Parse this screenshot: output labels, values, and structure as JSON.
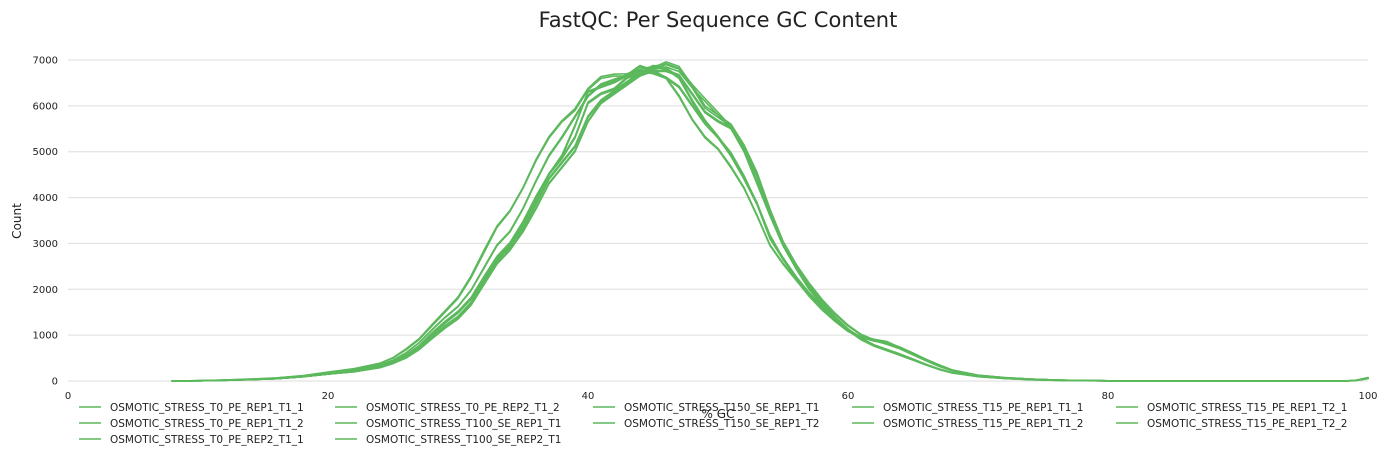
{
  "chart_data": {
    "type": "line",
    "title": "FastQC: Per Sequence GC Content",
    "xlabel": "% GC",
    "ylabel": "Count",
    "xlim": [
      0,
      100
    ],
    "ylim": [
      0,
      7000
    ],
    "xticks": [
      "0",
      "20",
      "40",
      "60",
      "80",
      "100"
    ],
    "yticks": [
      "0",
      "1000",
      "2000",
      "3000",
      "4000",
      "5000",
      "6000",
      "7000"
    ],
    "grid": "horizontal",
    "legend_position": "bottom",
    "line_color": "#5cb85c",
    "x": [
      8,
      10,
      12,
      14,
      16,
      18,
      20,
      22,
      24,
      25,
      26,
      27,
      28,
      29,
      30,
      31,
      32,
      33,
      34,
      35,
      36,
      37,
      38,
      39,
      40,
      41,
      42,
      43,
      44,
      45,
      46,
      47,
      48,
      49,
      50,
      51,
      52,
      53,
      54,
      55,
      56,
      57,
      58,
      59,
      60,
      61,
      62,
      63,
      64,
      65,
      66,
      67,
      68,
      70,
      72,
      74,
      76,
      78,
      80,
      82,
      84,
      86,
      88,
      90,
      92,
      94,
      96,
      98,
      99,
      100
    ],
    "series": [
      {
        "name": "OSMOTIC_STRESS_T0_PE_REP1_T1_1",
        "values": [
          0,
          5,
          15,
          30,
          50,
          90,
          160,
          220,
          330,
          420,
          560,
          760,
          1030,
          1290,
          1510,
          1800,
          2250,
          2700,
          3000,
          3450,
          4000,
          4500,
          4900,
          5550,
          6300,
          6400,
          6500,
          6650,
          6850,
          6750,
          6600,
          6200,
          5700,
          5300,
          5050,
          4650,
          4200,
          3600,
          2950,
          2550,
          2200,
          1850,
          1550,
          1300,
          1080,
          950,
          900,
          850,
          720,
          580,
          450,
          330,
          230,
          120,
          70,
          40,
          20,
          10,
          5,
          2,
          0,
          0,
          0,
          0,
          0,
          0,
          0,
          0,
          10,
          70
        ]
      },
      {
        "name": "OSMOTIC_STRESS_T0_PE_REP1_T1_2",
        "values": [
          0,
          5,
          15,
          30,
          50,
          90,
          160,
          220,
          330,
          430,
          570,
          770,
          1050,
          1300,
          1520,
          1820,
          2280,
          2720,
          3020,
          3480,
          4030,
          4520,
          4930,
          5580,
          6320,
          6420,
          6520,
          6680,
          6880,
          6780,
          6620,
          6230,
          5720,
          5330,
          5070,
          4680,
          4220,
          3620,
          2970,
          2570,
          2220,
          1870,
          1570,
          1320,
          1100,
          960,
          910,
          860,
          730,
          590,
          460,
          340,
          235,
          125,
          72,
          42,
          22,
          11,
          5,
          2,
          0,
          0,
          0,
          0,
          0,
          0,
          0,
          0,
          12,
          75
        ]
      },
      {
        "name": "OSMOTIC_STRESS_T0_PE_REP2_T1_1",
        "values": [
          0,
          8,
          20,
          40,
          65,
          110,
          190,
          260,
          380,
          500,
          680,
          900,
          1200,
          1500,
          1800,
          2250,
          2800,
          3350,
          3700,
          4200,
          4800,
          5300,
          5650,
          5900,
          6350,
          6600,
          6650,
          6650,
          6750,
          6800,
          6850,
          6750,
          6400,
          6100,
          5800,
          5500,
          5000,
          4300,
          3600,
          2950,
          2500,
          2100,
          1750,
          1450,
          1200,
          1000,
          880,
          800,
          700,
          570,
          440,
          320,
          220,
          115,
          65,
          35,
          18,
          9,
          4,
          1,
          0,
          0,
          0,
          0,
          0,
          0,
          0,
          0,
          8,
          60
        ]
      },
      {
        "name": "OSMOTIC_STRESS_T0_PE_REP2_T1_2",
        "values": [
          0,
          8,
          20,
          42,
          68,
          115,
          195,
          270,
          390,
          510,
          700,
          920,
          1230,
          1530,
          1830,
          2290,
          2850,
          3380,
          3720,
          4220,
          4830,
          5330,
          5680,
          5940,
          6380,
          6640,
          6690,
          6700,
          6800,
          6860,
          6920,
          6820,
          6470,
          6160,
          5860,
          5550,
          5050,
          4350,
          3650,
          3000,
          2550,
          2140,
          1780,
          1480,
          1220,
          1020,
          900,
          820,
          710,
          580,
          450,
          330,
          225,
          118,
          67,
          36,
          19,
          9,
          4,
          1,
          0,
          0,
          0,
          0,
          0,
          0,
          0,
          0,
          9,
          62
        ]
      },
      {
        "name": "OSMOTIC_STRESS_T100_SE_REP1_T1",
        "values": [
          0,
          5,
          15,
          30,
          50,
          90,
          150,
          200,
          300,
          390,
          520,
          700,
          950,
          1200,
          1400,
          1700,
          2150,
          2600,
          2950,
          3300,
          3850,
          4400,
          4750,
          5100,
          5750,
          6100,
          6300,
          6500,
          6700,
          6800,
          6900,
          6800,
          6400,
          5950,
          5750,
          5550,
          5100,
          4500,
          3700,
          3000,
          2500,
          2050,
          1700,
          1380,
          1120,
          920,
          780,
          680,
          580,
          470,
          360,
          260,
          180,
          100,
          60,
          30,
          15,
          8,
          3,
          1,
          0,
          0,
          0,
          0,
          0,
          0,
          0,
          0,
          8,
          55
        ]
      },
      {
        "name": "OSMOTIC_STRESS_T100_SE_REP2_T1",
        "values": [
          0,
          5,
          15,
          30,
          50,
          90,
          150,
          205,
          305,
          395,
          525,
          710,
          960,
          1210,
          1410,
          1720,
          2170,
          2630,
          2980,
          3330,
          3880,
          4430,
          4780,
          5130,
          5780,
          6130,
          6330,
          6530,
          6730,
          6830,
          6960,
          6860,
          6450,
          6000,
          5800,
          5600,
          5150,
          4550,
          3750,
          3050,
          2550,
          2090,
          1730,
          1400,
          1140,
          935,
          790,
          690,
          590,
          480,
          365,
          265,
          182,
          102,
          61,
          31,
          16,
          8,
          3,
          1,
          0,
          0,
          0,
          0,
          0,
          0,
          0,
          0,
          8,
          58
        ]
      },
      {
        "name": "OSMOTIC_STRESS_T150_SE_REP1_T1",
        "values": [
          0,
          5,
          15,
          30,
          50,
          90,
          150,
          210,
          320,
          410,
          550,
          750,
          1000,
          1260,
          1480,
          1780,
          2200,
          2650,
          2900,
          3400,
          3950,
          4500,
          4850,
          5300,
          6050,
          6250,
          6350,
          6600,
          6700,
          6850,
          6800,
          6600,
          6100,
          5650,
          5300,
          4900,
          4400,
          3850,
          3100,
          2650,
          2250,
          1900,
          1600,
          1350,
          1100,
          950,
          870,
          820,
          730,
          600,
          470,
          350,
          240,
          125,
          75,
          42,
          22,
          11,
          5,
          2,
          0,
          0,
          0,
          0,
          0,
          0,
          0,
          0,
          10,
          65
        ]
      },
      {
        "name": "OSMOTIC_STRESS_T150_SE_REP1_T2",
        "values": [
          0,
          5,
          15,
          30,
          50,
          90,
          150,
          210,
          320,
          415,
          555,
          755,
          1010,
          1270,
          1490,
          1790,
          2220,
          2670,
          2920,
          3420,
          3970,
          4530,
          4880,
          5330,
          6080,
          6280,
          6380,
          6630,
          6730,
          6880,
          6830,
          6640,
          6140,
          5690,
          5340,
          4940,
          4440,
          3890,
          3140,
          2690,
          2280,
          1930,
          1620,
          1370,
          1120,
          960,
          880,
          830,
          740,
          610,
          475,
          355,
          243,
          127,
          76,
          43,
          22,
          11,
          5,
          2,
          0,
          0,
          0,
          0,
          0,
          0,
          0,
          0,
          10,
          68
        ]
      },
      {
        "name": "OSMOTIC_STRESS_T15_PE_REP1_T1_1",
        "values": [
          0,
          5,
          15,
          30,
          50,
          90,
          150,
          200,
          290,
          380,
          500,
          680,
          920,
          1150,
          1350,
          1650,
          2100,
          2550,
          2850,
          3250,
          3750,
          4300,
          4650,
          5000,
          5650,
          6050,
          6250,
          6450,
          6650,
          6750,
          6750,
          6650,
          6250,
          5850,
          5650,
          5500,
          5050,
          4450,
          3650,
          2950,
          2450,
          2000,
          1650,
          1350,
          1100,
          900,
          760,
          660,
          560,
          455,
          350,
          250,
          175,
          95,
          55,
          28,
          14,
          7,
          3,
          1,
          0,
          0,
          0,
          0,
          0,
          0,
          0,
          0,
          7,
          52
        ]
      },
      {
        "name": "OSMOTIC_STRESS_T15_PE_REP1_T1_2",
        "values": [
          0,
          5,
          15,
          30,
          50,
          90,
          150,
          202,
          292,
          383,
          505,
          685,
          928,
          1160,
          1360,
          1665,
          2120,
          2570,
          2870,
          3270,
          3770,
          4320,
          4670,
          5020,
          5670,
          6070,
          6270,
          6470,
          6670,
          6770,
          6780,
          6680,
          6280,
          5880,
          5680,
          5530,
          5080,
          4480,
          3680,
          2980,
          2480,
          2020,
          1670,
          1370,
          1110,
          910,
          770,
          670,
          570,
          460,
          355,
          255,
          178,
          97,
          56,
          29,
          14,
          7,
          3,
          1,
          0,
          0,
          0,
          0,
          0,
          0,
          0,
          0,
          7,
          54
        ]
      },
      {
        "name": "OSMOTIC_STRESS_T15_PE_REP1_T2_1",
        "values": [
          0,
          6,
          17,
          34,
          56,
          98,
          165,
          230,
          345,
          450,
          610,
          830,
          1110,
          1380,
          1620,
          1970,
          2460,
          2950,
          3250,
          3750,
          4350,
          4900,
          5300,
          5750,
          6200,
          6450,
          6550,
          6650,
          6750,
          6700,
          6600,
          6400,
          6000,
          5600,
          5300,
          4950,
          4450,
          3850,
          3150,
          2650,
          2250,
          1900,
          1600,
          1350,
          1100,
          950,
          880,
          820,
          720,
          590,
          460,
          340,
          232,
          122,
          72,
          40,
          21,
          10,
          5,
          2,
          0,
          0,
          0,
          0,
          0,
          0,
          0,
          0,
          10,
          66
        ]
      },
      {
        "name": "OSMOTIC_STRESS_T15_PE_REP1_T2_2",
        "values": [
          0,
          6,
          17,
          34,
          56,
          98,
          165,
          232,
          348,
          455,
          615,
          835,
          1120,
          1390,
          1630,
          1985,
          2480,
          2970,
          3270,
          3770,
          4370,
          4930,
          5330,
          5780,
          6230,
          6480,
          6580,
          6680,
          6780,
          6730,
          6630,
          6430,
          6030,
          5630,
          5330,
          4980,
          4480,
          3880,
          3180,
          2680,
          2280,
          1920,
          1620,
          1370,
          1120,
          960,
          890,
          830,
          730,
          600,
          465,
          345,
          236,
          124,
          73,
          41,
          21,
          10,
          5,
          2,
          0,
          0,
          0,
          0,
          0,
          0,
          0,
          0,
          11,
          70
        ]
      }
    ]
  }
}
